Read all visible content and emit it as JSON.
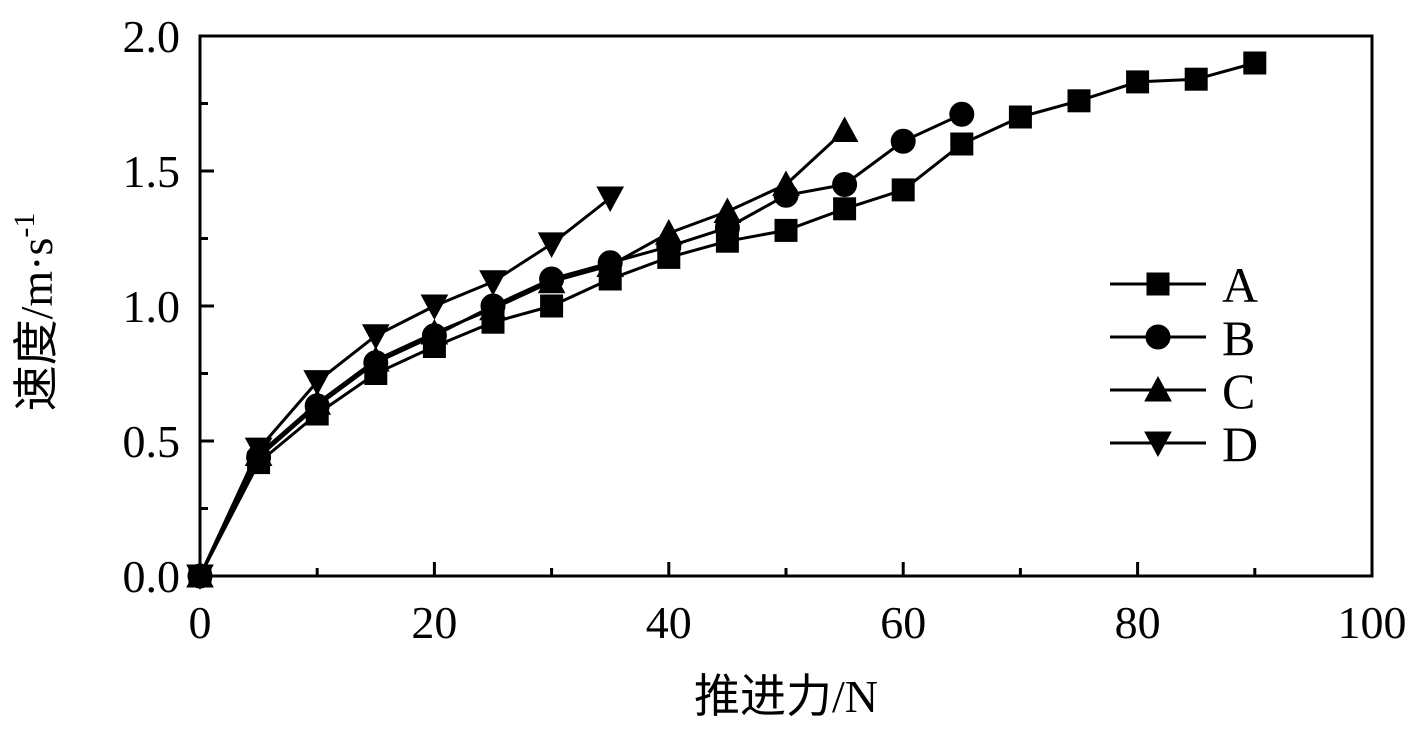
{
  "chart_data": {
    "type": "line",
    "title": "",
    "xlabel": "推进力/N",
    "ylabel_main": "速度/m·s",
    "ylabel_sup": "-1",
    "xlim": [
      0,
      100
    ],
    "ylim": [
      0,
      2.0
    ],
    "x_ticks": [
      0,
      20,
      40,
      60,
      80,
      100
    ],
    "x_tick_labels": [
      "0",
      "20",
      "40",
      "60",
      "80",
      "100"
    ],
    "y_ticks": [
      0,
      0.5,
      1.0,
      1.5,
      2.0
    ],
    "y_tick_labels": [
      "0.0",
      "0.5",
      "1.0",
      "1.5",
      "2.0"
    ],
    "grid": false,
    "legend_position": "right",
    "series": [
      {
        "name": "A",
        "marker": "square",
        "color": "#000000",
        "x": [
          0,
          5,
          10,
          15,
          20,
          25,
          30,
          35,
          40,
          45,
          50,
          55,
          60,
          65,
          70,
          75,
          80,
          85,
          90
        ],
        "y": [
          0,
          0.42,
          0.6,
          0.75,
          0.85,
          0.94,
          1.0,
          1.1,
          1.18,
          1.24,
          1.28,
          1.36,
          1.43,
          1.6,
          1.7,
          1.76,
          1.83,
          1.84,
          1.9
        ]
      },
      {
        "name": "B",
        "marker": "circle",
        "color": "#000000",
        "x": [
          0,
          5,
          10,
          15,
          20,
          25,
          30,
          35,
          40,
          45,
          50,
          55,
          60,
          65
        ],
        "y": [
          0,
          0.44,
          0.63,
          0.79,
          0.89,
          1.0,
          1.1,
          1.16,
          1.22,
          1.29,
          1.41,
          1.45,
          1.61,
          1.71
        ]
      },
      {
        "name": "C",
        "marker": "triangle-up",
        "color": "#000000",
        "x": [
          0,
          5,
          10,
          15,
          20,
          25,
          30,
          35,
          40,
          45,
          50,
          55
        ],
        "y": [
          0,
          0.45,
          0.64,
          0.8,
          0.9,
          0.99,
          1.09,
          1.15,
          1.27,
          1.35,
          1.45,
          1.65
        ]
      },
      {
        "name": "D",
        "marker": "triangle-down",
        "color": "#000000",
        "x": [
          0,
          5,
          10,
          15,
          20,
          25,
          30,
          35
        ],
        "y": [
          0,
          0.47,
          0.72,
          0.89,
          1.0,
          1.09,
          1.23,
          1.4
        ]
      }
    ]
  }
}
